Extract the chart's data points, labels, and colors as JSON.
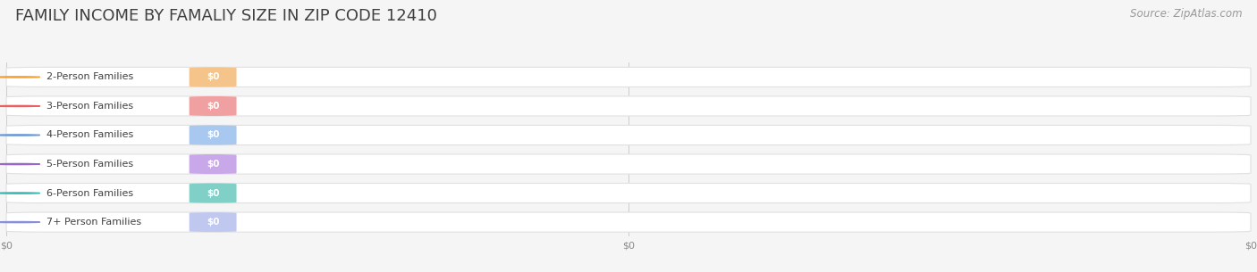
{
  "title": "FAMILY INCOME BY FAMALIY SIZE IN ZIP CODE 12410",
  "source": "Source: ZipAtlas.com",
  "categories": [
    "2-Person Families",
    "3-Person Families",
    "4-Person Families",
    "5-Person Families",
    "6-Person Families",
    "7+ Person Families"
  ],
  "values": [
    0,
    0,
    0,
    0,
    0,
    0
  ],
  "bar_colors": [
    "#f5c48a",
    "#f0a0a0",
    "#a8c8f0",
    "#c8a8e8",
    "#80d0c8",
    "#c0c8f0"
  ],
  "dot_colors": [
    "#f5a030",
    "#e86060",
    "#6898d8",
    "#9868c8",
    "#38b8b0",
    "#8890d8"
  ],
  "value_labels": [
    "$0",
    "$0",
    "$0",
    "$0",
    "$0",
    "$0"
  ],
  "xtick_labels": [
    "$0",
    "$0",
    "$0"
  ],
  "xtick_positions": [
    0.0,
    0.5,
    1.0
  ],
  "xlim": [
    0,
    1
  ],
  "background_color": "#f5f5f5",
  "title_fontsize": 13,
  "label_fontsize": 8,
  "source_fontsize": 8.5
}
